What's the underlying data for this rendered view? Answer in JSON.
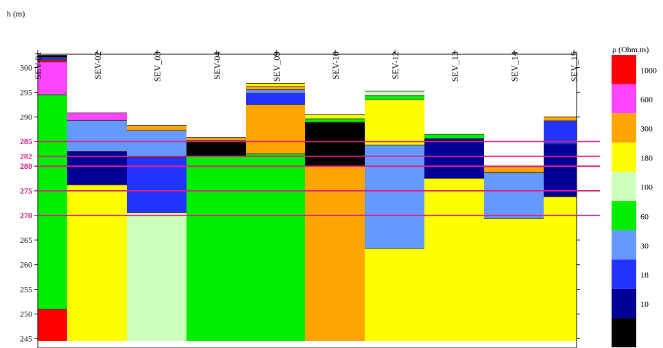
{
  "chart_data": {
    "type": "bar",
    "subtype": "stacked-layer-columns",
    "ylabel": "h (m)",
    "ylim": [
      244.5,
      303
    ],
    "yticks": [
      245,
      250,
      255,
      260,
      265,
      270,
      275,
      280,
      285,
      290,
      295,
      300
    ],
    "legend": {
      "title": "ρ (Ohm.m)",
      "placement": "right",
      "items": [
        {
          "label": "1000",
          "color": "#ff0000"
        },
        {
          "label": "600",
          "color": "#ff44ff"
        },
        {
          "label": "300",
          "color": "#ffa500"
        },
        {
          "label": "180",
          "color": "#ffff00"
        },
        {
          "label": "100",
          "color": "#ccffbb"
        },
        {
          "label": "60",
          "color": "#00ee00"
        },
        {
          "label": "30",
          "color": "#6699ff"
        },
        {
          "label": "18",
          "color": "#2233ff"
        },
        {
          "label": "10",
          "color": "#000099"
        },
        {
          "label": "",
          "color": "#000000"
        }
      ]
    },
    "reference_lines": [
      {
        "value": 285,
        "label": "285"
      },
      {
        "value": 282,
        "label": "282"
      },
      {
        "value": 280,
        "label": "280"
      },
      {
        "value": 275,
        "label": "275"
      },
      {
        "value": 270,
        "label": "270"
      }
    ],
    "categories": [
      "SEV-01",
      "SEV-02",
      "SEV_03",
      "SEV-04",
      "SEV_09",
      "SEV-10",
      "SEV-12",
      "SEV_13",
      "SEV_14",
      "SEV_15"
    ],
    "columns": [
      {
        "name": "SEV-01",
        "layers": [
          {
            "top": 302.5,
            "bottom": 302.1,
            "color": "#000000"
          },
          {
            "top": 302.1,
            "bottom": 301.6,
            "color": "#2233ff"
          },
          {
            "top": 301.6,
            "bottom": 301.2,
            "color": "#ff0000"
          },
          {
            "top": 301.2,
            "bottom": 294.5,
            "color": "#ff44ff"
          },
          {
            "top": 294.5,
            "bottom": 251.0,
            "color": "#00ee00"
          },
          {
            "top": 251.0,
            "bottom": 244.5,
            "color": "#ff0000"
          }
        ]
      },
      {
        "name": "SEV-02",
        "layers": [
          {
            "top": 290.8,
            "bottom": 289.3,
            "color": "#ff44ff"
          },
          {
            "top": 289.3,
            "bottom": 283.0,
            "color": "#6699ff"
          },
          {
            "top": 283.0,
            "bottom": 276.2,
            "color": "#000099"
          },
          {
            "top": 276.2,
            "bottom": 244.5,
            "color": "#ffff00"
          }
        ]
      },
      {
        "name": "SEV_03",
        "layers": [
          {
            "top": 288.3,
            "bottom": 287.2,
            "color": "#ffa500"
          },
          {
            "top": 287.2,
            "bottom": 281.8,
            "color": "#6699ff"
          },
          {
            "top": 281.8,
            "bottom": 270.6,
            "color": "#2233ff"
          },
          {
            "top": 270.6,
            "bottom": 244.5,
            "color": "#ccffbb"
          }
        ]
      },
      {
        "name": "SEV-04",
        "layers": [
          {
            "top": 285.8,
            "bottom": 285.2,
            "color": "#ffa500"
          },
          {
            "top": 285.2,
            "bottom": 282.0,
            "color": "#000000"
          },
          {
            "top": 282.0,
            "bottom": 244.5,
            "color": "#00ee00"
          }
        ]
      },
      {
        "name": "SEV_09",
        "layers": [
          {
            "top": 296.8,
            "bottom": 296.2,
            "color": "#ffff00"
          },
          {
            "top": 296.2,
            "bottom": 295.5,
            "color": "#ffa500"
          },
          {
            "top": 295.5,
            "bottom": 294.8,
            "color": "#6699ff"
          },
          {
            "top": 294.8,
            "bottom": 292.5,
            "color": "#2233ff"
          },
          {
            "top": 292.5,
            "bottom": 282.5,
            "color": "#ffa500"
          },
          {
            "top": 282.5,
            "bottom": 244.5,
            "color": "#00ee00"
          }
        ]
      },
      {
        "name": "SEV-10",
        "layers": [
          {
            "top": 290.5,
            "bottom": 289.6,
            "color": "#ffff00"
          },
          {
            "top": 289.6,
            "bottom": 288.9,
            "color": "#00ee00"
          },
          {
            "top": 288.9,
            "bottom": 280.0,
            "color": "#000000"
          },
          {
            "top": 280.0,
            "bottom": 244.5,
            "color": "#ffa500"
          }
        ]
      },
      {
        "name": "SEV-12",
        "layers": [
          {
            "top": 295.2,
            "bottom": 294.3,
            "color": "#ccffbb"
          },
          {
            "top": 294.3,
            "bottom": 293.5,
            "color": "#00ee00"
          },
          {
            "top": 293.5,
            "bottom": 284.3,
            "color": "#ffff00"
          },
          {
            "top": 284.3,
            "bottom": 263.3,
            "color": "#6699ff"
          },
          {
            "top": 263.3,
            "bottom": 244.5,
            "color": "#ffff00"
          }
        ]
      },
      {
        "name": "SEV_13",
        "layers": [
          {
            "top": 286.5,
            "bottom": 285.6,
            "color": "#00ee00"
          },
          {
            "top": 285.6,
            "bottom": 277.5,
            "color": "#000099"
          },
          {
            "top": 277.5,
            "bottom": 244.5,
            "color": "#ffff00"
          }
        ]
      },
      {
        "name": "SEV_14",
        "layers": [
          {
            "top": 279.9,
            "bottom": 278.7,
            "color": "#ffa500"
          },
          {
            "top": 278.7,
            "bottom": 269.4,
            "color": "#6699ff"
          },
          {
            "top": 269.4,
            "bottom": 244.5,
            "color": "#ffff00"
          }
        ]
      },
      {
        "name": "SEV_15",
        "layers": [
          {
            "top": 290.0,
            "bottom": 289.2,
            "color": "#ffa500"
          },
          {
            "top": 289.2,
            "bottom": 284.5,
            "color": "#2233ff"
          },
          {
            "top": 284.5,
            "bottom": 273.8,
            "color": "#000099"
          },
          {
            "top": 273.8,
            "bottom": 244.5,
            "color": "#ffff00"
          }
        ]
      }
    ]
  }
}
